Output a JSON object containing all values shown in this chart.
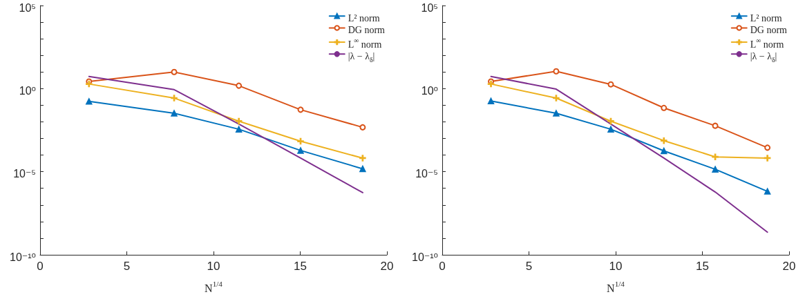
{
  "chart_data": [
    {
      "type": "line",
      "xlabel": "N$^{1/4}$",
      "log": "y",
      "grid": false,
      "legend": "top right",
      "xlim": [
        0,
        20
      ],
      "xticks": [
        0,
        5,
        10,
        15,
        20
      ],
      "ylim": [
        1e-10,
        100000
      ],
      "yticks": [
        {
          "value": 1e-10,
          "label": "10⁻¹⁰"
        },
        {
          "value": 1e-09,
          "label": null
        },
        {
          "value": 1e-08,
          "label": null
        },
        {
          "value": 1e-07,
          "label": null
        },
        {
          "value": 1e-06,
          "label": null
        },
        {
          "value": 1e-05,
          "label": "10⁻⁵"
        },
        {
          "value": 0.0001,
          "label": null
        },
        {
          "value": 0.001,
          "label": null
        },
        {
          "value": 0.01,
          "label": null
        },
        {
          "value": 0.1,
          "label": null
        },
        {
          "value": 1,
          "label": "10⁰"
        },
        {
          "value": 10,
          "label": null
        },
        {
          "value": 100,
          "label": null
        },
        {
          "value": 1000,
          "label": null
        },
        {
          "value": 10000,
          "label": null
        },
        {
          "value": 100000,
          "label": "10⁵"
        }
      ],
      "x": [
        2.82,
        7.73,
        11.46,
        15.02,
        18.6
      ],
      "series": [
        {
          "name": "L² norm",
          "color": "#0072bd",
          "marker": "triangle",
          "values": [
            0.17,
            0.033,
            0.0036,
            0.00019,
            1.5e-05
          ]
        },
        {
          "name": "DG norm",
          "color": "#d95319",
          "marker": "circle",
          "values": [
            2.7,
            10,
            1.5,
            0.054,
            0.0047
          ]
        },
        {
          "name": "L$^{∞}$ norm",
          "color": "#edb120",
          "marker": "cross",
          "values": [
            1.9,
            0.27,
            0.011,
            0.00068,
            6.6e-05
          ]
        },
        {
          "name": "|λ − λ$_{δ}$|",
          "color": "#7e2f8e",
          "marker": "none",
          "values": [
            5.4,
            0.87,
            0.0074,
            6.6e-05,
            5.5e-07
          ]
        }
      ]
    },
    {
      "type": "line",
      "xlabel": "N$^{1/4}$",
      "log": "y",
      "grid": false,
      "legend": "top right",
      "xlim": [
        0,
        20
      ],
      "xticks": [
        0,
        5,
        10,
        15,
        20
      ],
      "ylim": [
        1e-10,
        100000
      ],
      "yticks": [
        {
          "value": 1e-10,
          "label": "10⁻¹⁰"
        },
        {
          "value": 1e-09,
          "label": null
        },
        {
          "value": 1e-08,
          "label": null
        },
        {
          "value": 1e-07,
          "label": null
        },
        {
          "value": 1e-06,
          "label": null
        },
        {
          "value": 1e-05,
          "label": "10⁻⁵"
        },
        {
          "value": 0.0001,
          "label": null
        },
        {
          "value": 0.001,
          "label": null
        },
        {
          "value": 0.01,
          "label": null
        },
        {
          "value": 0.1,
          "label": null
        },
        {
          "value": 1,
          "label": "10⁰"
        },
        {
          "value": 10,
          "label": null
        },
        {
          "value": 100,
          "label": null
        },
        {
          "value": 1000,
          "label": null
        },
        {
          "value": 10000,
          "label": null
        },
        {
          "value": 100000,
          "label": "10⁵"
        }
      ],
      "x": [
        2.81,
        6.57,
        9.72,
        12.78,
        15.74,
        18.75
      ],
      "series": [
        {
          "name": "L² norm",
          "color": "#0072bd",
          "marker": "triangle",
          "values": [
            0.18,
            0.033,
            0.0036,
            0.00018,
            1.4e-05,
            6.6e-07
          ]
        },
        {
          "name": "DG norm",
          "color": "#d95319",
          "marker": "circle",
          "values": [
            2.7,
            11,
            1.8,
            0.069,
            0.0058,
            0.00028
          ]
        },
        {
          "name": "L$^{∞}$ norm",
          "color": "#edb120",
          "marker": "cross",
          "values": [
            1.9,
            0.27,
            0.011,
            0.00074,
            7.8e-05,
            6.6e-05
          ]
        },
        {
          "name": "|λ − λ$_{δ}$|",
          "color": "#7e2f8e",
          "marker": "none",
          "values": [
            5.4,
            0.93,
            0.0074,
            6.6e-05,
            6e-07,
            2.3e-09
          ]
        }
      ]
    }
  ]
}
